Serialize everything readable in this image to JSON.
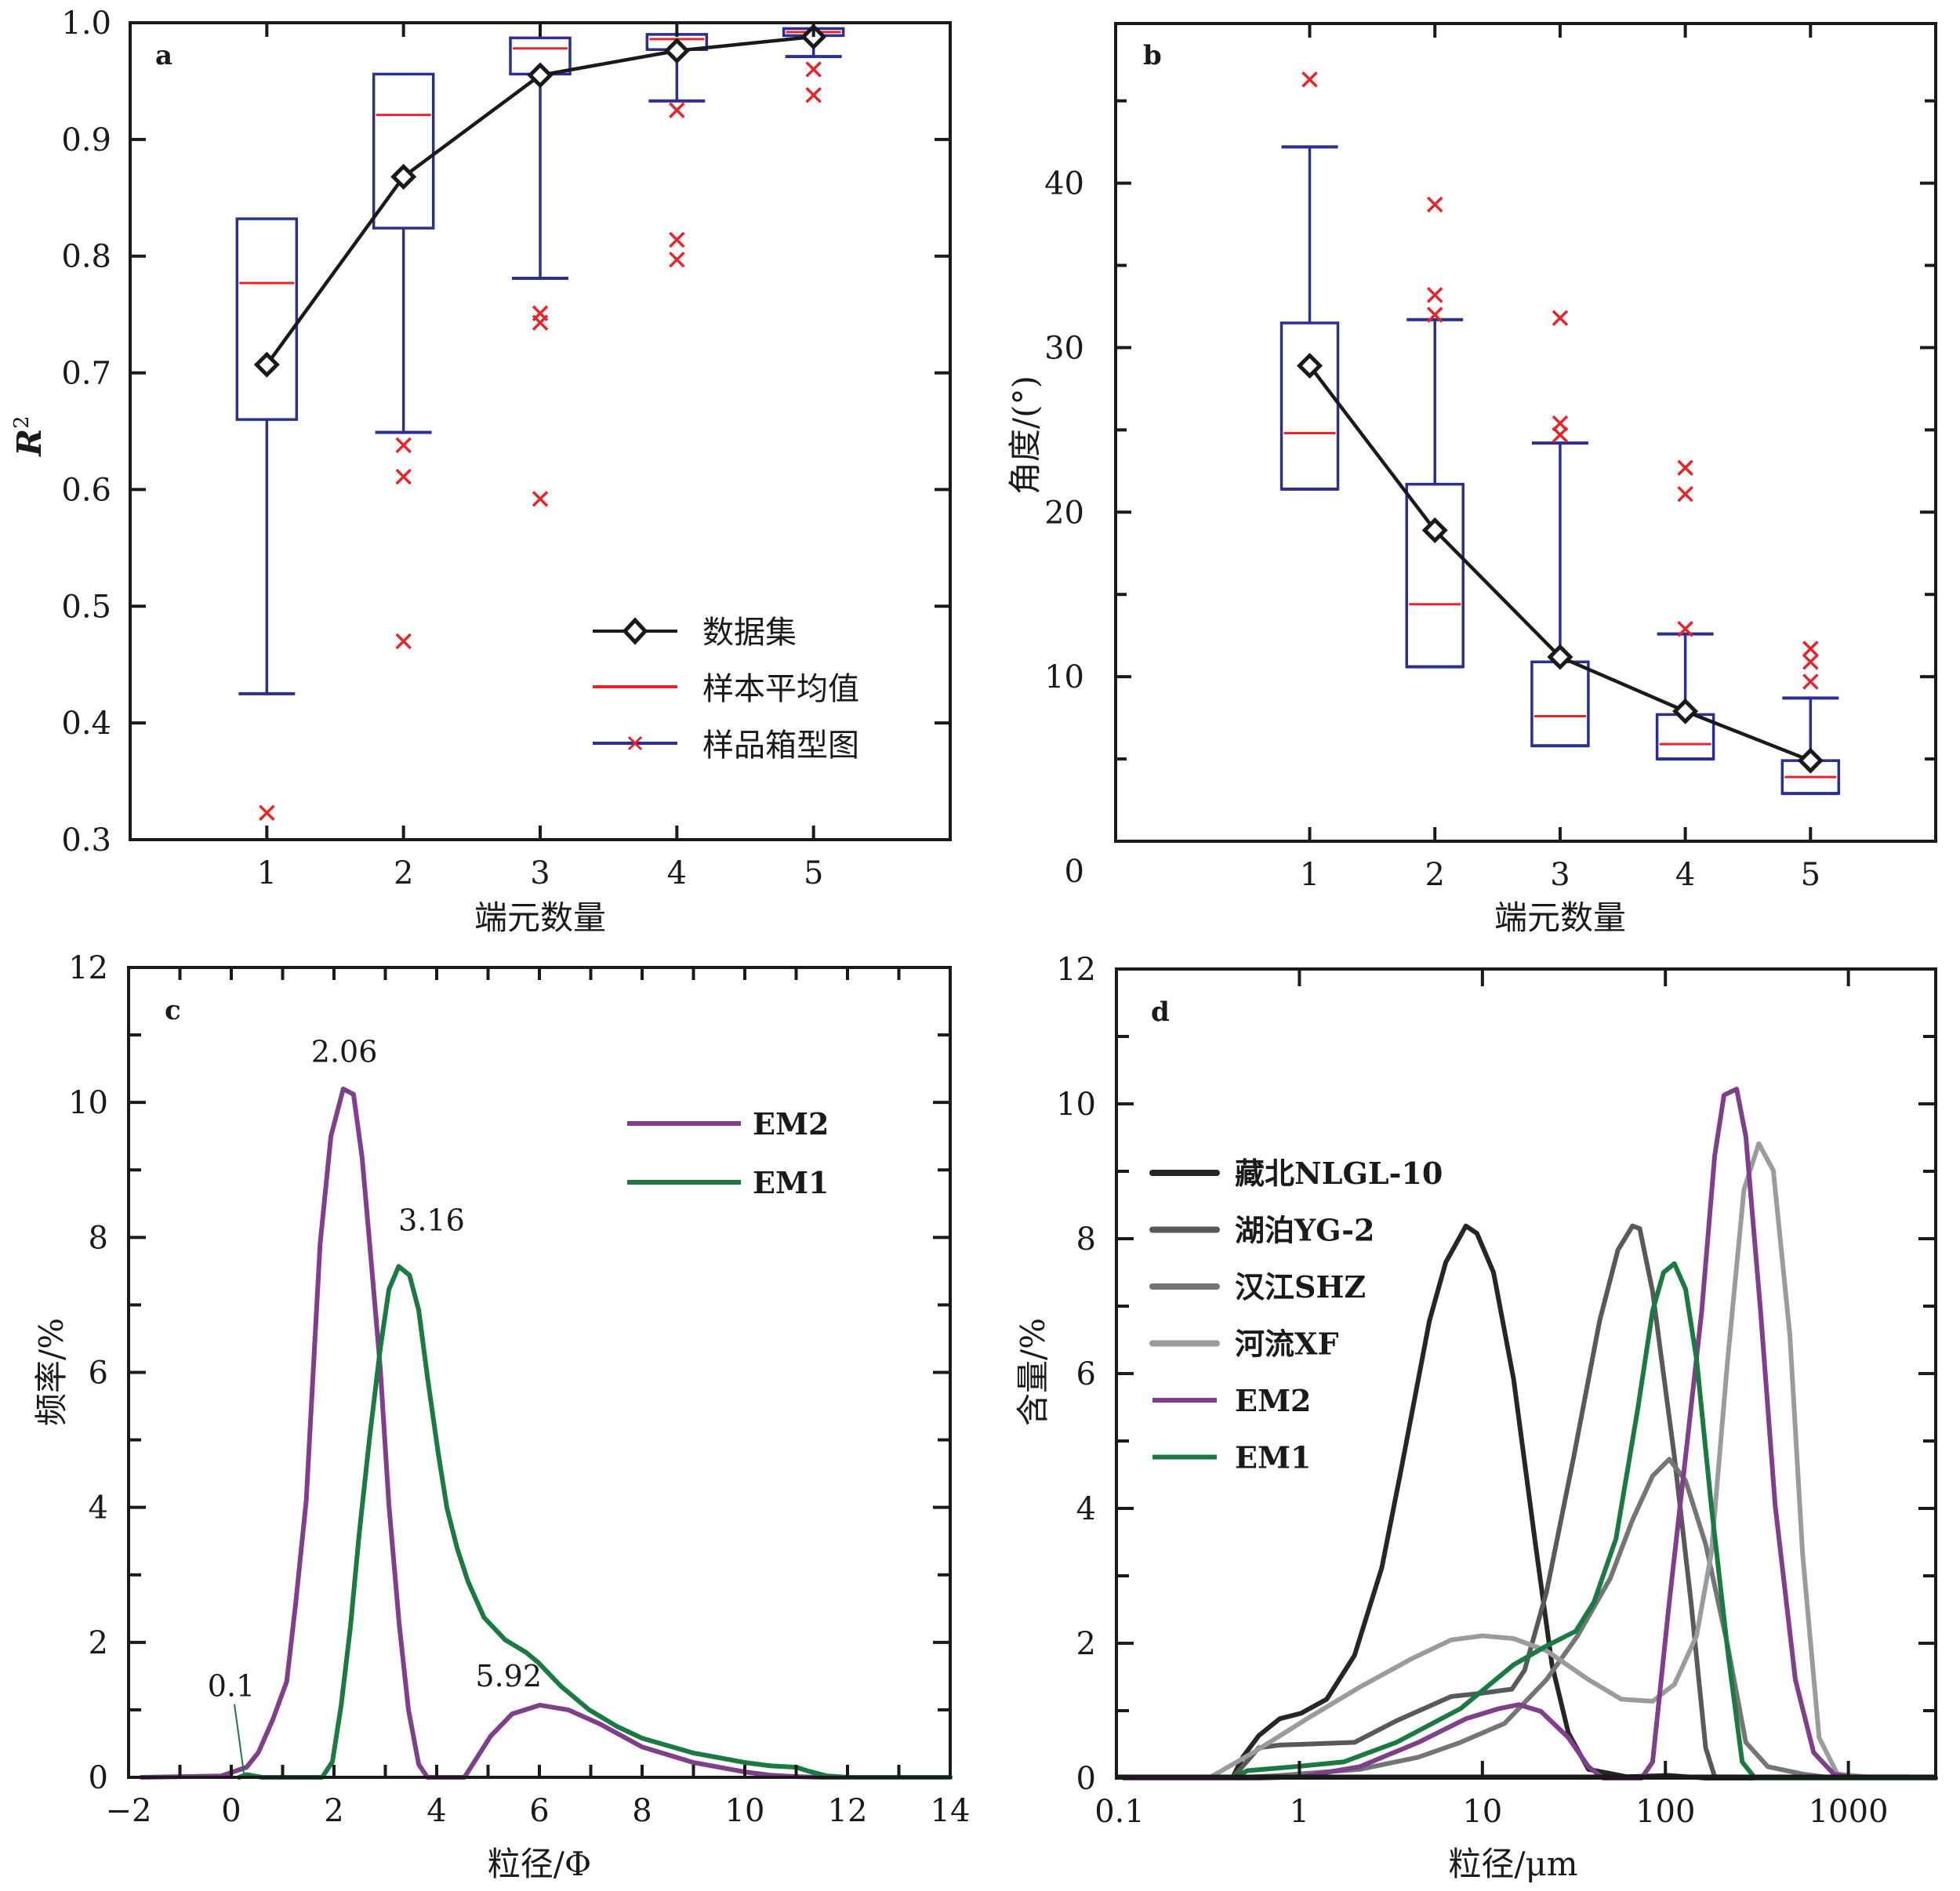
{
  "colors": {
    "axis": "#1a1a1a",
    "box": "#2b2f8f",
    "mean": "#e8242a",
    "outlier": "#e8242a",
    "dataset_line": "#1a1a1a",
    "em2": "#7f3f8a",
    "em1": "#1b7a42",
    "nlgl10": "#262626",
    "yg2": "#57595b",
    "shz": "#747577",
    "xf": "#9a9b9d"
  },
  "chart_data": [
    {
      "id": "a",
      "panel_label": "a",
      "type": "box",
      "title": "",
      "xlabel": "端元数量",
      "ylabel": "R",
      "ylabel_superscript": "2",
      "categories": [
        "1",
        "2",
        "3",
        "4",
        "5"
      ],
      "xlim": [
        0,
        6
      ],
      "ylim": [
        0.3,
        1.0
      ],
      "yticks": [
        "0.3",
        "0.4",
        "0.5",
        "0.6",
        "0.7",
        "0.8",
        "0.9",
        "1.0"
      ],
      "ytick_values": [
        0.3,
        0.4,
        0.5,
        0.6,
        0.7,
        0.8,
        0.9,
        1.0
      ],
      "legend": {
        "position": "lower-right",
        "entries": [
          {
            "label": "数据集",
            "style": "line-diamond"
          },
          {
            "label": "样本平均值",
            "style": "red-line"
          },
          {
            "label": "样品箱型图",
            "style": "box-line-cross"
          }
        ]
      },
      "boxes": [
        {
          "x": 1,
          "whisker_low": 0.425,
          "q1": 0.66,
          "mean": 0.777,
          "q3": 0.832,
          "whisker_high": 0.832,
          "outliers": [
            0.323
          ]
        },
        {
          "x": 2,
          "whisker_low": 0.649,
          "q1": 0.824,
          "mean": 0.921,
          "q3": 0.956,
          "whisker_high": 0.956,
          "outliers": [
            0.638,
            0.611,
            0.47
          ]
        },
        {
          "x": 3,
          "whisker_low": 0.781,
          "q1": 0.956,
          "mean": 0.978,
          "q3": 0.987,
          "whisker_high": 0.987,
          "outliers": [
            0.751,
            0.743,
            0.592
          ]
        },
        {
          "x": 4,
          "whisker_low": 0.933,
          "q1": 0.977,
          "mean": 0.986,
          "q3": 0.99,
          "whisker_high": 0.99,
          "outliers": [
            0.925,
            0.814,
            0.797
          ]
        },
        {
          "x": 5,
          "whisker_low": 0.971,
          "q1": 0.989,
          "mean": 0.992,
          "q3": 0.995,
          "whisker_high": 0.995,
          "outliers": [
            0.96,
            0.938
          ]
        }
      ],
      "dataset_series": {
        "name": "数据集",
        "x": [
          1,
          2,
          3,
          4,
          5
        ],
        "y": [
          0.707,
          0.868,
          0.955,
          0.976,
          0.988
        ]
      }
    },
    {
      "id": "b",
      "panel_label": "b",
      "type": "box",
      "title": "",
      "xlabel": "端元数量",
      "ylabel": "角度/(°)",
      "categories": [
        "1",
        "2",
        "3",
        "4",
        "5"
      ],
      "xlim": [
        -0.55,
        6.0
      ],
      "ylim": [
        0,
        49.7
      ],
      "yticks": [
        "0",
        "10",
        "20",
        "30",
        "40"
      ],
      "ytick_values": [
        0,
        10,
        20,
        30,
        40
      ],
      "minor_ytick_step": 5,
      "boxes": [
        {
          "x": 1,
          "whisker_low": 21.4,
          "q1": 21.4,
          "mean": 24.8,
          "q3": 31.5,
          "whisker_high": 42.2,
          "outliers": [
            46.3
          ]
        },
        {
          "x": 2,
          "whisker_low": 10.6,
          "q1": 10.6,
          "mean": 14.4,
          "q3": 21.7,
          "whisker_high": 31.7,
          "outliers": [
            38.7,
            33.2,
            32.0
          ]
        },
        {
          "x": 3,
          "whisker_low": 5.8,
          "q1": 5.8,
          "mean": 7.6,
          "q3": 10.9,
          "whisker_high": 24.2,
          "outliers": [
            31.8,
            25.4,
            24.7
          ]
        },
        {
          "x": 4,
          "whisker_low": 5.0,
          "q1": 5.0,
          "mean": 5.9,
          "q3": 7.7,
          "whisker_high": 12.6,
          "outliers": [
            22.7,
            21.1,
            12.9
          ]
        },
        {
          "x": 5,
          "whisker_low": 2.9,
          "q1": 2.9,
          "mean": 3.9,
          "q3": 4.9,
          "whisker_high": 8.7,
          "outliers": [
            11.7,
            10.9,
            9.7
          ]
        }
      ],
      "dataset_series": {
        "name": "数据集",
        "x": [
          1,
          2,
          3,
          4,
          5
        ],
        "y": [
          28.9,
          18.9,
          11.2,
          7.9,
          4.9
        ]
      }
    },
    {
      "id": "c",
      "panel_label": "c",
      "type": "line",
      "title": "",
      "xlabel": "粒径/Φ",
      "ylabel": "频率/%",
      "xlim": [
        -2,
        14
      ],
      "ylim": [
        0,
        12
      ],
      "xticks": [
        "-2",
        "0",
        "2",
        "4",
        "6",
        "8",
        "10",
        "12",
        "14"
      ],
      "xtick_values": [
        -2,
        0,
        2,
        4,
        6,
        8,
        10,
        12,
        14
      ],
      "yticks": [
        "0",
        "2",
        "4",
        "6",
        "8",
        "10",
        "12"
      ],
      "ytick_values": [
        0,
        2,
        4,
        6,
        8,
        10,
        12
      ],
      "legend": {
        "position": "top-right",
        "entries": [
          "EM2",
          "EM1"
        ]
      },
      "annotations": [
        {
          "text": "2.06",
          "x": 2.2,
          "y": 10.6
        },
        {
          "text": "3.16",
          "x": 3.9,
          "y": 8.1
        },
        {
          "text": "5.92",
          "x": 5.4,
          "y": 1.35
        },
        {
          "text": "0.1",
          "x": 0.0,
          "y": 1.2,
          "leader_to": [
            0.25,
            0.03
          ]
        }
      ],
      "series": [
        {
          "name": "EM2",
          "color_key": "em2",
          "x": [
            -1.75,
            -0.2,
            0.3,
            0.53,
            0.81,
            1.08,
            1.25,
            1.46,
            1.73,
            1.94,
            2.18,
            2.38,
            2.55,
            2.73,
            2.9,
            3.07,
            3.27,
            3.45,
            3.65,
            3.82,
            4.54,
            5.05,
            5.47,
            6.01,
            6.56,
            7.18,
            8.0,
            9.0,
            10.0,
            10.5,
            11.0,
            11.5,
            14.0
          ],
          "y": [
            0,
            0.02,
            0.15,
            0.37,
            0.86,
            1.42,
            2.55,
            4.1,
            7.9,
            9.5,
            10.2,
            10.12,
            9.17,
            7.6,
            6.07,
            4.03,
            2.27,
            1.0,
            0.19,
            0,
            0,
            0.61,
            0.94,
            1.07,
            1.0,
            0.79,
            0.45,
            0.22,
            0.08,
            0.03,
            0.01,
            0,
            0
          ]
        },
        {
          "name": "EM1",
          "color_key": "em1",
          "x": [
            0.15,
            0.3,
            0.6,
            1.77,
            1.97,
            2.14,
            2.32,
            2.49,
            2.69,
            2.9,
            3.07,
            3.26,
            3.47,
            3.65,
            3.82,
            4.03,
            4.2,
            4.4,
            4.61,
            4.92,
            5.33,
            5.74,
            5.98,
            6.42,
            6.97,
            7.52,
            8.0,
            9.0,
            10.0,
            10.5,
            11.0,
            11.2,
            11.6,
            12.0,
            14.0
          ],
          "y": [
            0,
            0.04,
            0,
            0,
            0.23,
            1.07,
            2.23,
            3.6,
            5.01,
            6.35,
            7.23,
            7.57,
            7.44,
            6.92,
            5.93,
            4.8,
            3.99,
            3.39,
            2.9,
            2.37,
            2.04,
            1.85,
            1.7,
            1.35,
            1.0,
            0.75,
            0.58,
            0.36,
            0.22,
            0.17,
            0.15,
            0.1,
            0.02,
            0,
            0
          ]
        }
      ]
    },
    {
      "id": "d",
      "panel_label": "d",
      "type": "line",
      "title": "",
      "xlabel": "粒径/μm",
      "ylabel": "含量/%",
      "xscale": "log",
      "xlim": [
        0.1,
        3000
      ],
      "ylim": [
        0,
        12
      ],
      "xticks": [
        "0.1",
        "1",
        "10",
        "100",
        "1000"
      ],
      "xtick_values": [
        0.1,
        1,
        10,
        100,
        1000
      ],
      "yticks": [
        "0",
        "2",
        "4",
        "6",
        "8",
        "10",
        "12"
      ],
      "ytick_values": [
        0,
        2,
        4,
        6,
        8,
        10,
        12
      ],
      "legend": {
        "position": "upper-left",
        "entries": [
          "藏北NLGL-10",
          "湖泊YG-2",
          "汉江SHZ",
          "河流XF",
          "EM2",
          "EM1"
        ]
      },
      "series": [
        {
          "name": "藏北NLGL-10",
          "color_key": "nlgl10",
          "x": [
            0.11,
            0.43,
            0.49,
            0.6,
            0.78,
            1.02,
            1.41,
            2.0,
            2.82,
            3.63,
            5.13,
            6.31,
            8.13,
            9.33,
            11.5,
            14.8,
            19.5,
            24.0,
            29.5,
            38.0,
            61.7,
            105,
            166,
            3000
          ],
          "y": [
            0,
            0,
            0.31,
            0.63,
            0.88,
            0.96,
            1.17,
            1.82,
            3.12,
            4.63,
            6.78,
            7.65,
            8.19,
            8.08,
            7.5,
            5.92,
            3.47,
            1.68,
            0.67,
            0.13,
            0.02,
            0.04,
            0,
            0
          ]
        },
        {
          "name": "湖泊YG-2",
          "color_key": "yg2",
          "x": [
            0.43,
            0.6,
            0.78,
            2.0,
            3.39,
            6.76,
            10.0,
            14.5,
            17.0,
            22.4,
            31.6,
            43.7,
            55.0,
            66.1,
            72.4,
            85.1,
            112,
            138,
            166,
            186,
            3000
          ],
          "y": [
            0,
            0.45,
            0.49,
            0.53,
            0.85,
            1.21,
            1.26,
            1.32,
            1.6,
            2.76,
            4.77,
            6.78,
            7.83,
            8.19,
            8.15,
            7.22,
            4.77,
            2.61,
            0.45,
            0.02,
            0
          ]
        },
        {
          "name": "汉江SHZ",
          "color_key": "shz",
          "x": [
            0.43,
            0.78,
            2.14,
            4.47,
            7.59,
            13.2,
            22.4,
            33.1,
            50.1,
            66.1,
            85.1,
            105,
            129,
            166,
            219,
            275,
            363,
            562,
            832
          ],
          "y": [
            0,
            0.04,
            0.13,
            0.31,
            0.53,
            0.81,
            1.46,
            2.11,
            2.97,
            3.83,
            4.48,
            4.73,
            4.41,
            3.47,
            1.96,
            0.53,
            0.17,
            0.06,
            0
          ]
        },
        {
          "name": "河流XF",
          "color_key": "xf",
          "x": [
            0.32,
            0.56,
            1.1,
            2.14,
            4.17,
            6.76,
            10.0,
            14.8,
            22.4,
            38.0,
            57.5,
            85.1,
            112,
            148,
            178,
            219,
            269,
            324,
            389,
            479,
            562,
            692,
            871,
            1259,
            2138
          ],
          "y": [
            0,
            0.38,
            0.88,
            1.35,
            1.78,
            2.05,
            2.11,
            2.07,
            1.89,
            1.46,
            1.17,
            1.14,
            1.39,
            2.11,
            3.33,
            6.21,
            8.73,
            9.41,
            9.01,
            6.57,
            3.33,
            0.6,
            0.06,
            0.02,
            0.02
          ]
        },
        {
          "name": "EM2",
          "color_key": "em2",
          "x": [
            0.11,
            0.6,
            1.02,
            2.14,
            4.47,
            8.13,
            12.3,
            15.8,
            20.9,
            29.5,
            38.0,
            45.7,
            74.1,
            85.1,
            105,
            129,
            158,
            186,
            209,
            245,
            275,
            331,
            398,
            513,
            646,
            832,
            1096,
            3000
          ],
          "y": [
            0,
            0,
            0.02,
            0.17,
            0.53,
            0.88,
            1.03,
            1.09,
            0.99,
            0.6,
            0.17,
            0,
            0,
            0.24,
            2.61,
            4.77,
            6.93,
            9.23,
            10.13,
            10.22,
            9.52,
            6.93,
            4.05,
            1.46,
            0.38,
            0.06,
            0,
            0
          ]
        },
        {
          "name": "EM1",
          "color_key": "em1",
          "x": [
            0.43,
            0.52,
            0.95,
            1.74,
            3.39,
            7.59,
            14.8,
            22.4,
            32.4,
            40.7,
            53.7,
            70.8,
            85.1,
            97.7,
            112,
            129,
            148,
            178,
            219,
            263,
            309,
            3000
          ],
          "y": [
            0,
            0.11,
            0.17,
            0.24,
            0.53,
            1.03,
            1.68,
            1.96,
            2.18,
            2.61,
            3.55,
            5.49,
            6.93,
            7.5,
            7.63,
            7.25,
            6.21,
            4.05,
            1.89,
            0.24,
            0,
            0
          ]
        }
      ]
    }
  ]
}
